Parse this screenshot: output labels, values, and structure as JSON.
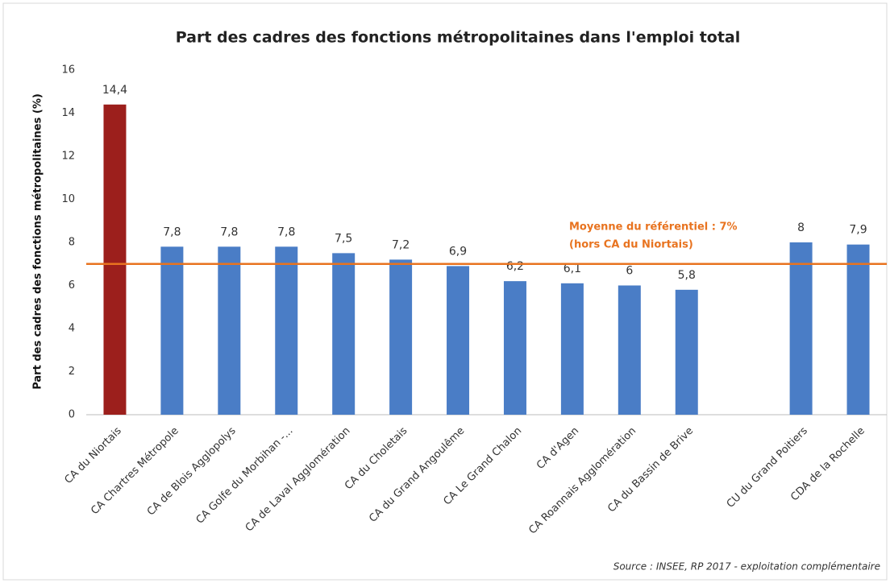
{
  "chart_data": {
    "type": "bar",
    "title": "Part des cadres des fonctions métropolitaines dans l'emploi total",
    "y_label": "Part des cadres des fonctions métropolitaines (%)",
    "source": "Source : INSEE, RP 2017 - exploitation complémentaire",
    "categories": [
      "CA du Niortais",
      "CA Chartres Métropole",
      "CA de Blois Agglopolys",
      "CA Golfe du Morbihan -...",
      "CA de Laval Agglomération",
      "CA du Choletais",
      "CA du Grand Angoulême",
      "CA Le Grand Chalon",
      "CA d'Agen",
      "CA Roannais Agglomération",
      "CA du Bassin de Brive",
      null,
      "CU du Grand Poitiers",
      "CDA de la Rochelle"
    ],
    "values": [
      14.4,
      7.8,
      7.8,
      7.8,
      7.5,
      7.2,
      6.9,
      6.2,
      6.1,
      6,
      5.8,
      null,
      8,
      7.9
    ],
    "value_labels": [
      "14,4",
      "7,8",
      "7,8",
      "7,8",
      "7,5",
      "7,2",
      "6,9",
      "6,2",
      "6,1",
      "6",
      "5,8",
      null,
      "8",
      "7,9"
    ],
    "colors": [
      "#9c1f1c",
      "#4a7dc6",
      "#4a7dc6",
      "#4a7dc6",
      "#4a7dc6",
      "#4a7dc6",
      "#4a7dc6",
      "#4a7dc6",
      "#4a7dc6",
      "#4a7dc6",
      "#4a7dc6",
      null,
      "#4a7dc6",
      "#4a7dc6"
    ],
    "ylim": [
      0,
      16
    ],
    "yticks": [
      0,
      2,
      4,
      6,
      8,
      10,
      12,
      14,
      16
    ],
    "grid": false,
    "reference_line": {
      "value": 7,
      "color": "#e8731f",
      "label": [
        "Moyenne du référentiel : 7%",
        "(hors CA du Niortais)"
      ]
    }
  }
}
